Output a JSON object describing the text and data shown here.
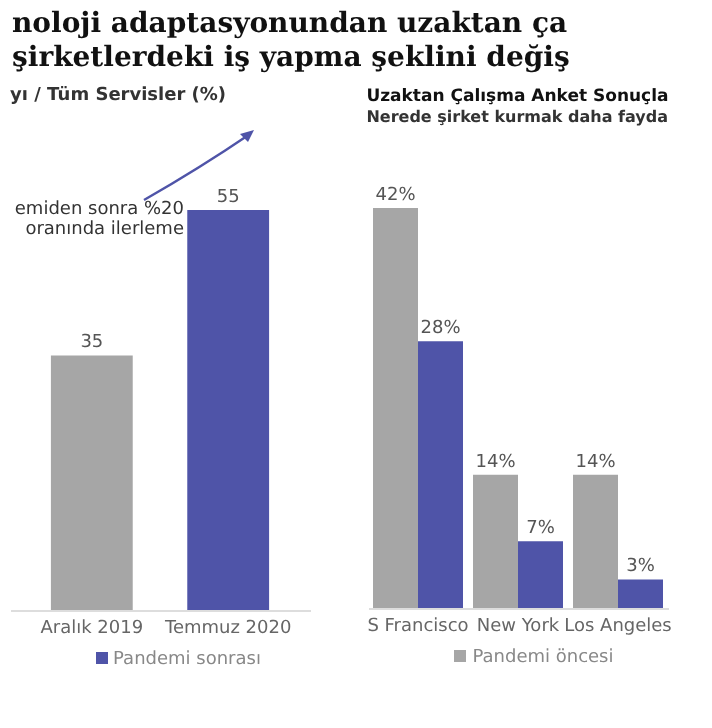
{
  "chart_data": [
    {
      "type": "bar",
      "title": "noloji adaptasyonundan uzaktan ça\nşirketlerdeki iş yapma şeklini değiş",
      "subtitle": "yı / Tüm Servisler (%)",
      "annotations": [
        "emiden sonra %20 oranında ilerleme"
      ],
      "categories": [
        "Aralık 2019",
        "Temmuz 2020"
      ],
      "series": [
        {
          "color": "#a6a6a6",
          "values": [
            35,
            null
          ]
        },
        {
          "name": "Pandemi sonrası",
          "color": "#4f54a8",
          "values": [
            null,
            55
          ]
        }
      ],
      "data_labels": true,
      "tick_labels": "x",
      "legend": "bottom"
    },
    {
      "type": "bar",
      "title": "Uzaktan Çalışma Anket Sonuçla",
      "subtitle": "Nerede şirket kurmak daha fayda",
      "categories": [
        "S Francisco",
        "New York",
        "Los Angeles"
      ],
      "series": [
        {
          "name": "Pandemi öncesi",
          "color": "#a6a6a6",
          "values": [
            42,
            14,
            14
          ],
          "value_labels": [
            "42%",
            "14%",
            "14%"
          ]
        },
        {
          "color": "#4f54a8",
          "values": [
            28,
            7,
            3
          ],
          "value_labels": [
            "28%",
            "7%",
            "3%"
          ]
        }
      ],
      "tick_labels": "x",
      "legend": "bottom"
    }
  ]
}
